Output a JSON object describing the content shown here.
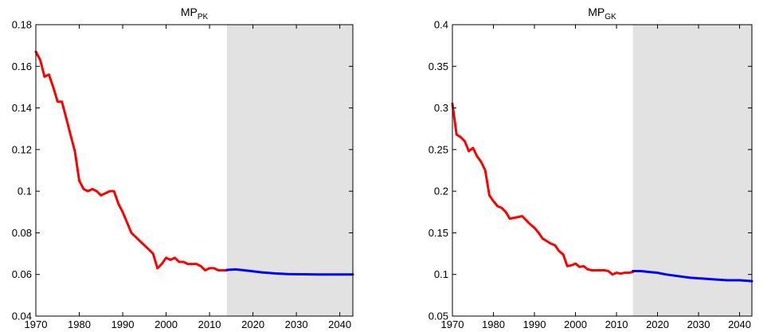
{
  "figure": {
    "colors": {
      "historical": "#ff0000",
      "forecast": "#0000ff",
      "shade": "#e2e2e2",
      "axis": "#000000"
    }
  },
  "chart_data": [
    {
      "type": "line",
      "title": "MP",
      "title_subscript": "PK",
      "xlabel": "",
      "ylabel": "",
      "xlim": [
        1970,
        2043
      ],
      "ylim": [
        0.04,
        0.18
      ],
      "x_ticks": [
        "1970",
        "1980",
        "1990",
        "2000",
        "2010",
        "2020",
        "2030",
        "2040"
      ],
      "y_ticks": [
        "0.04",
        "0.06",
        "0.08",
        "0.1",
        "0.12",
        "0.14",
        "0.16",
        "0.18"
      ],
      "shaded_region": [
        2014,
        2043
      ],
      "grid": false,
      "legend": "none",
      "series": [
        {
          "color": "#ff0000",
          "x": [
            1970,
            1971,
            1972,
            1973,
            1974,
            1975,
            1976,
            1977,
            1978,
            1979,
            1980,
            1981,
            1982,
            1983,
            1984,
            1985,
            1986,
            1987,
            1988,
            1989,
            1990,
            1991,
            1992,
            1993,
            1994,
            1995,
            1996,
            1997,
            1998,
            1999,
            2000,
            2001,
            2002,
            2003,
            2004,
            2005,
            2006,
            2007,
            2008,
            2009,
            2010,
            2011,
            2012,
            2013,
            2014
          ],
          "y": [
            0.167,
            0.163,
            0.155,
            0.156,
            0.15,
            0.143,
            0.143,
            0.135,
            0.127,
            0.119,
            0.105,
            0.101,
            0.1,
            0.101,
            0.1,
            0.098,
            0.099,
            0.1,
            0.1,
            0.094,
            0.09,
            0.085,
            0.08,
            0.078,
            0.076,
            0.074,
            0.072,
            0.07,
            0.063,
            0.065,
            0.068,
            0.067,
            0.068,
            0.066,
            0.066,
            0.065,
            0.065,
            0.065,
            0.064,
            0.062,
            0.063,
            0.063,
            0.062,
            0.062,
            0.062
          ]
        },
        {
          "color": "#0000ff",
          "x": [
            2014,
            2016,
            2018,
            2020,
            2022,
            2025,
            2028,
            2031,
            2035,
            2040,
            2043
          ],
          "y": [
            0.0622,
            0.0624,
            0.062,
            0.0615,
            0.061,
            0.0605,
            0.0602,
            0.0601,
            0.06,
            0.06,
            0.06
          ]
        }
      ]
    },
    {
      "type": "line",
      "title": "MP",
      "title_subscript": "GK",
      "xlabel": "",
      "ylabel": "",
      "xlim": [
        1970,
        2043
      ],
      "ylim": [
        0.05,
        0.4
      ],
      "x_ticks": [
        "1970",
        "1980",
        "1990",
        "2000",
        "2010",
        "2020",
        "2030",
        "2040"
      ],
      "y_ticks": [
        "0.05",
        "0.1",
        "0.15",
        "0.2",
        "0.25",
        "0.3",
        "0.35",
        "0.4"
      ],
      "shaded_region": [
        2014,
        2043
      ],
      "grid": false,
      "legend": "none",
      "series": [
        {
          "color": "#ff0000",
          "x": [
            1970,
            1971,
            1972,
            1973,
            1974,
            1975,
            1976,
            1977,
            1978,
            1979,
            1980,
            1981,
            1982,
            1983,
            1984,
            1985,
            1986,
            1987,
            1988,
            1989,
            1990,
            1991,
            1992,
            1993,
            1994,
            1995,
            1996,
            1997,
            1998,
            1999,
            2000,
            2001,
            2002,
            2003,
            2004,
            2005,
            2006,
            2007,
            2008,
            2009,
            2010,
            2011,
            2012,
            2013,
            2014
          ],
          "y": [
            0.305,
            0.268,
            0.265,
            0.26,
            0.248,
            0.252,
            0.242,
            0.235,
            0.225,
            0.195,
            0.188,
            0.182,
            0.18,
            0.175,
            0.167,
            0.168,
            0.169,
            0.17,
            0.165,
            0.16,
            0.156,
            0.15,
            0.143,
            0.14,
            0.137,
            0.135,
            0.128,
            0.124,
            0.11,
            0.111,
            0.113,
            0.109,
            0.11,
            0.106,
            0.105,
            0.105,
            0.105,
            0.105,
            0.104,
            0.1,
            0.102,
            0.101,
            0.102,
            0.102,
            0.103
          ]
        },
        {
          "color": "#0000ff",
          "x": [
            2014,
            2016,
            2018,
            2020,
            2022,
            2025,
            2028,
            2031,
            2034,
            2037,
            2040,
            2043
          ],
          "y": [
            0.104,
            0.104,
            0.103,
            0.102,
            0.1,
            0.098,
            0.096,
            0.095,
            0.094,
            0.093,
            0.093,
            0.092
          ]
        }
      ]
    }
  ]
}
